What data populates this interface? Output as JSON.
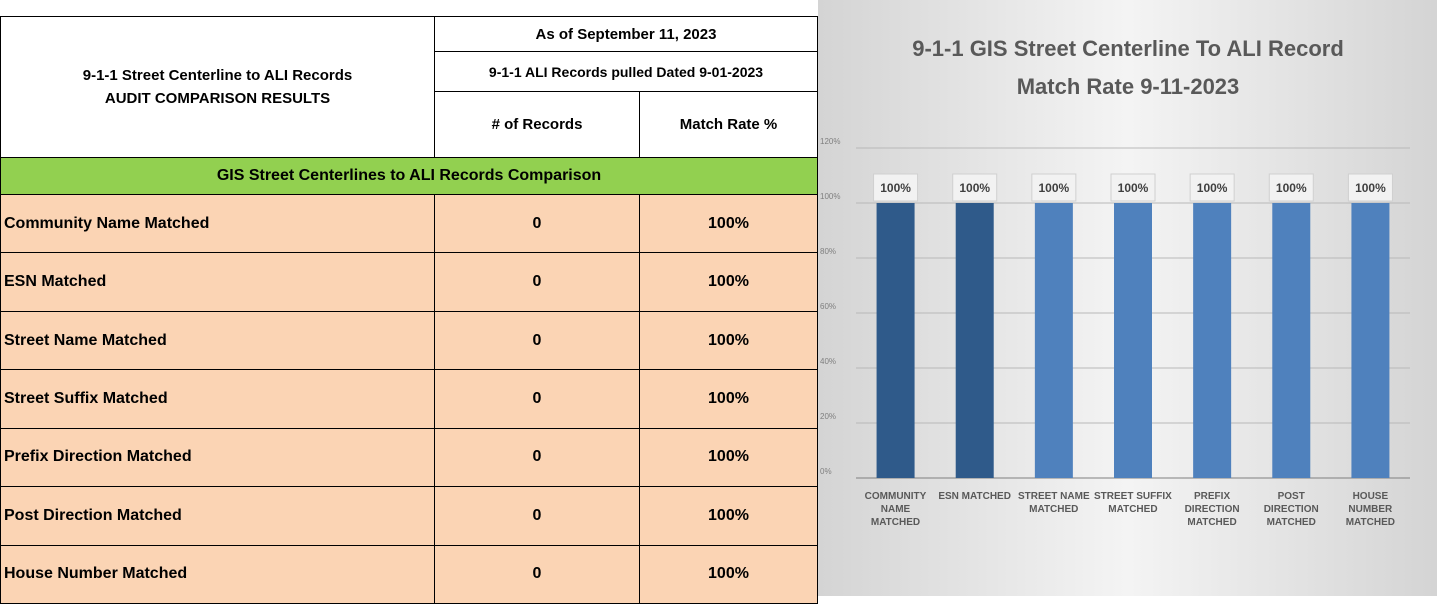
{
  "table": {
    "title_lines": [
      "9-1-1 Street Centerline to ALI Records",
      "AUDIT COMPARISON RESULTS"
    ],
    "as_of": "As of September 11, 2023",
    "pulled": "9-1-1 ALI Records pulled Dated 9-01-2023",
    "columns": [
      "# of Records",
      "Match Rate %"
    ],
    "section": "GIS Street Centerlines to ALI Records Comparison",
    "rows": [
      [
        "Community Name Matched",
        "0",
        "100%"
      ],
      [
        "ESN Matched",
        "0",
        "100%"
      ],
      [
        "Street Name Matched",
        "0",
        "100%"
      ],
      [
        "Street Suffix Matched",
        "0",
        "100%"
      ],
      [
        "Prefix Direction Matched",
        "0",
        "100%"
      ],
      [
        "Post Direction Matched",
        "0",
        "100%"
      ],
      [
        "House Number Matched",
        "0",
        "100%"
      ]
    ]
  },
  "chart_data": {
    "type": "bar",
    "title": "9-1-1 GIS Street Centerline To ALI Record Match Rate 9-11-2023",
    "categories": [
      "COMMUNITY NAME MATCHED",
      "ESN MATCHED",
      "STREET NAME MATCHED",
      "STREET SUFFIX MATCHED",
      "PREFIX DIRECTION MATCHED",
      "POST DIRECTION MATCHED",
      "HOUSE NUMBER MATCHED"
    ],
    "values": [
      100,
      100,
      100,
      100,
      100,
      100,
      100
    ],
    "value_labels": [
      "100%",
      "100%",
      "100%",
      "100%",
      "100%",
      "100%",
      "100%"
    ],
    "colors": [
      "#2f5a8a",
      "#2f5a8a",
      "#4f81bd",
      "#4f81bd",
      "#4f81bd",
      "#4f81bd",
      "#4f81bd"
    ],
    "ylim": [
      0,
      120
    ],
    "yticks": [
      {
        "value": 0,
        "label": "0%"
      },
      {
        "value": 20,
        "label": "20%"
      },
      {
        "value": 40,
        "label": "40%"
      },
      {
        "value": 60,
        "label": "60%"
      },
      {
        "value": 80,
        "label": "80%"
      },
      {
        "value": 100,
        "label": "100%"
      },
      {
        "value": 120,
        "label": "120%"
      }
    ],
    "grid": true
  }
}
